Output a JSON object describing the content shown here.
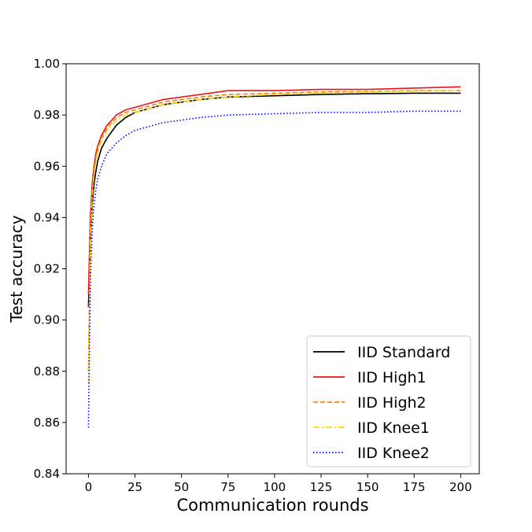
{
  "chart_data": {
    "type": "line",
    "title": "",
    "xlabel": "Communication rounds",
    "ylabel": "Test accuracy",
    "xlim": [
      -12,
      210
    ],
    "ylim": [
      0.84,
      1.0
    ],
    "xticks": [
      0,
      25,
      50,
      75,
      100,
      125,
      150,
      175,
      200
    ],
    "yticks": [
      0.84,
      0.86,
      0.88,
      0.9,
      0.92,
      0.94,
      0.96,
      0.98,
      1.0
    ],
    "grid": false,
    "legend_position": "lower-right",
    "series": [
      {
        "name": "IID Standard",
        "color": "#000000",
        "dash": "solid",
        "x": [
          0,
          1,
          2,
          3,
          4,
          5,
          7,
          10,
          15,
          20,
          25,
          30,
          40,
          50,
          60,
          75,
          100,
          125,
          150,
          175,
          200
        ],
        "y": [
          0.905,
          0.93,
          0.945,
          0.953,
          0.958,
          0.962,
          0.967,
          0.971,
          0.976,
          0.979,
          0.981,
          0.982,
          0.984,
          0.985,
          0.986,
          0.987,
          0.9875,
          0.988,
          0.9883,
          0.9885,
          0.9885
        ]
      },
      {
        "name": "IID High1",
        "color": "#e8151b",
        "dash": "solid",
        "x": [
          0,
          1,
          2,
          3,
          4,
          5,
          7,
          10,
          15,
          20,
          25,
          30,
          40,
          50,
          60,
          75,
          100,
          125,
          150,
          175,
          200
        ],
        "y": [
          0.91,
          0.94,
          0.953,
          0.96,
          0.965,
          0.968,
          0.972,
          0.976,
          0.98,
          0.982,
          0.983,
          0.984,
          0.986,
          0.987,
          0.988,
          0.9895,
          0.9895,
          0.99,
          0.99,
          0.9905,
          0.991
        ]
      },
      {
        "name": "IID High2",
        "color": "#ff7f0e",
        "dash": "dashed",
        "x": [
          0,
          1,
          2,
          3,
          4,
          5,
          7,
          10,
          15,
          20,
          25,
          30,
          40,
          50,
          60,
          75,
          100,
          125,
          150,
          175,
          200
        ],
        "y": [
          0.88,
          0.935,
          0.95,
          0.958,
          0.963,
          0.966,
          0.971,
          0.975,
          0.979,
          0.981,
          0.982,
          0.983,
          0.985,
          0.986,
          0.987,
          0.988,
          0.9885,
          0.989,
          0.9892,
          0.9895,
          0.9895
        ]
      },
      {
        "name": "IID Knee1",
        "color": "#ffd700",
        "dash": "dashdot",
        "x": [
          0,
          1,
          2,
          3,
          4,
          5,
          7,
          10,
          15,
          20,
          25,
          30,
          40,
          50,
          60,
          75,
          100,
          125,
          150,
          175,
          200
        ],
        "y": [
          0.875,
          0.93,
          0.948,
          0.957,
          0.962,
          0.966,
          0.97,
          0.974,
          0.978,
          0.98,
          0.981,
          0.982,
          0.984,
          0.985,
          0.986,
          0.987,
          0.988,
          0.9885,
          0.989,
          0.9893,
          0.9895
        ]
      },
      {
        "name": "IID Knee2",
        "color": "#0000ff",
        "dash": "dotted",
        "x": [
          0,
          1,
          2,
          3,
          4,
          5,
          7,
          10,
          15,
          20,
          25,
          30,
          40,
          50,
          60,
          75,
          100,
          125,
          150,
          175,
          200
        ],
        "y": [
          0.858,
          0.915,
          0.935,
          0.945,
          0.951,
          0.955,
          0.96,
          0.965,
          0.969,
          0.972,
          0.974,
          0.975,
          0.977,
          0.978,
          0.979,
          0.98,
          0.9805,
          0.981,
          0.981,
          0.9815,
          0.9815
        ]
      }
    ]
  }
}
